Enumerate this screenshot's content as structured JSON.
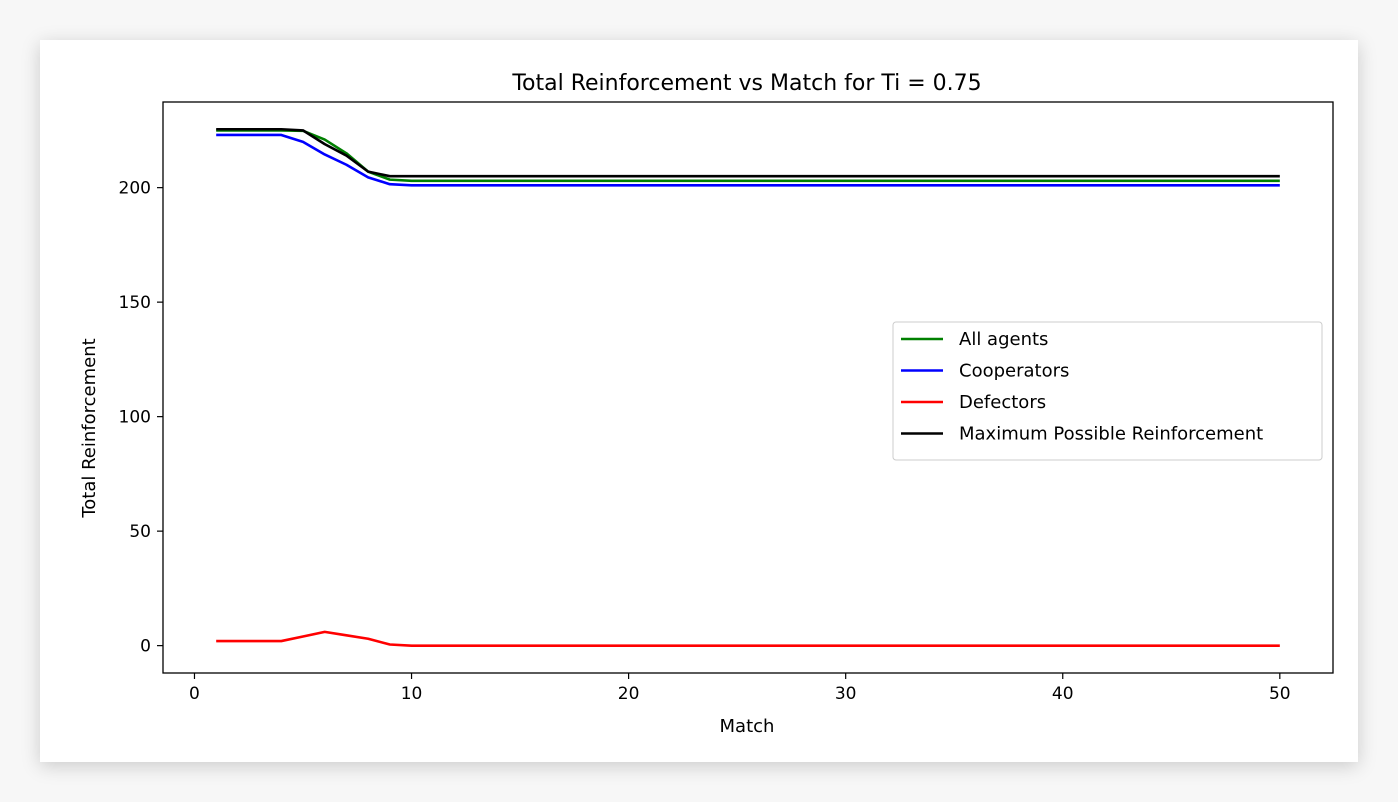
{
  "chart_data": {
    "type": "line",
    "title": "Total Reinforcement vs Match for Ti = 0.75",
    "xlabel": "Match",
    "ylabel": "Total Reinforcement",
    "xlim": [
      -1.45,
      52.45
    ],
    "ylim": [
      -11.95,
      237.4
    ],
    "xticks": [
      0,
      10,
      20,
      30,
      40,
      50
    ],
    "yticks": [
      0,
      50,
      100,
      150,
      200
    ],
    "grid": false,
    "legend_position": "center-right",
    "x": [
      1,
      2,
      3,
      4,
      5,
      6,
      7,
      8,
      9,
      10,
      11,
      12,
      13,
      14,
      15,
      16,
      17,
      18,
      19,
      20,
      21,
      22,
      23,
      24,
      25,
      26,
      27,
      28,
      29,
      30,
      31,
      32,
      33,
      34,
      35,
      36,
      37,
      38,
      39,
      40,
      41,
      42,
      43,
      44,
      45,
      46,
      47,
      48,
      49,
      50
    ],
    "series": [
      {
        "name": "All agents",
        "color": "#008000",
        "values": [
          225,
          225,
          225,
          225,
          224.8,
          221,
          215,
          207,
          203.5,
          203,
          203,
          203,
          203,
          203,
          203,
          203,
          203,
          203,
          203,
          203,
          203,
          203,
          203,
          203,
          203,
          203,
          203,
          203,
          203,
          203,
          203,
          203,
          203,
          203,
          203,
          203,
          203,
          203,
          203,
          203,
          203,
          203,
          203,
          203,
          203,
          203,
          203,
          203,
          203,
          203
        ]
      },
      {
        "name": "Cooperators",
        "color": "#0000ff",
        "values": [
          223,
          223,
          223,
          223,
          220,
          214.5,
          210,
          204.5,
          201.5,
          201,
          201,
          201,
          201,
          201,
          201,
          201,
          201,
          201,
          201,
          201,
          201,
          201,
          201,
          201,
          201,
          201,
          201,
          201,
          201,
          201,
          201,
          201,
          201,
          201,
          201,
          201,
          201,
          201,
          201,
          201,
          201,
          201,
          201,
          201,
          201,
          201,
          201,
          201,
          201,
          201
        ]
      },
      {
        "name": "Defectors",
        "color": "#ff0000",
        "values": [
          2,
          2,
          2,
          2,
          4,
          6,
          4.5,
          3,
          0.5,
          0,
          0,
          0,
          0,
          0,
          0,
          0,
          0,
          0,
          0,
          0,
          0,
          0,
          0,
          0,
          0,
          0,
          0,
          0,
          0,
          0,
          0,
          0,
          0,
          0,
          0,
          0,
          0,
          0,
          0,
          0,
          0,
          0,
          0,
          0,
          0,
          0,
          0,
          0,
          0,
          0
        ]
      },
      {
        "name": "Maximum Possible Reinforcement",
        "color": "#000000",
        "values": [
          225.5,
          225.5,
          225.5,
          225.5,
          225,
          219,
          214,
          207,
          205,
          205,
          205,
          205,
          205,
          205,
          205,
          205,
          205,
          205,
          205,
          205,
          205,
          205,
          205,
          205,
          205,
          205,
          205,
          205,
          205,
          205,
          205,
          205,
          205,
          205,
          205,
          205,
          205,
          205,
          205,
          205,
          205,
          205,
          205,
          205,
          205,
          205,
          205,
          205,
          205,
          205
        ]
      }
    ]
  }
}
